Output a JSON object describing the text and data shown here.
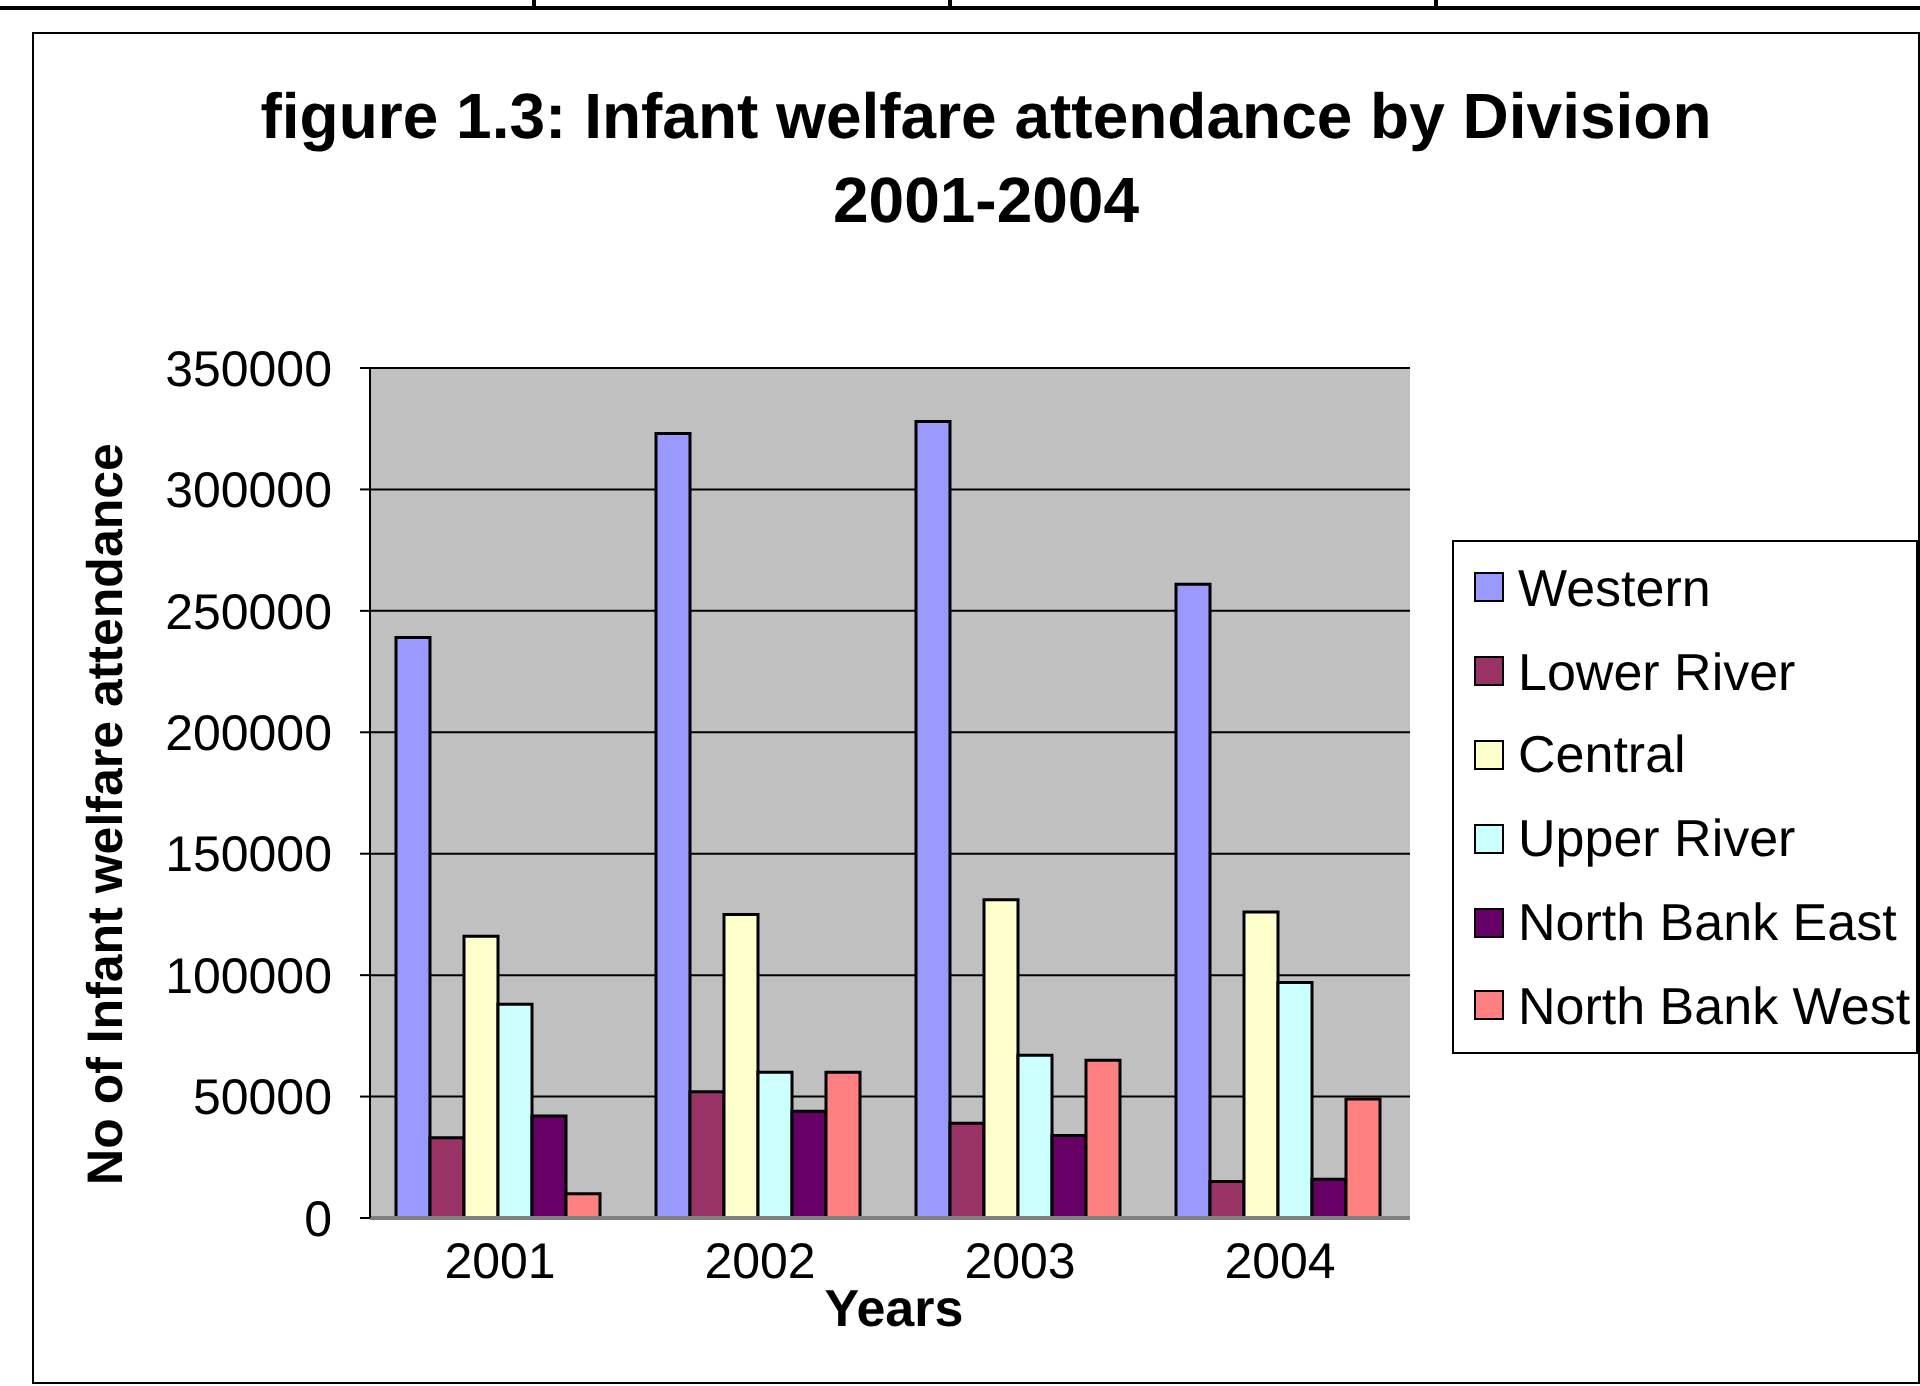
{
  "chart_data": {
    "type": "bar",
    "title": "figure 1.3: Infant welfare attendance by Division 2001-2004",
    "xlabel": "Years",
    "ylabel": "No of Infant welfare attendance",
    "categories": [
      "2001",
      "2002",
      "2003",
      "2004"
    ],
    "series": [
      {
        "name": "Western",
        "color": "#9999ff",
        "values": [
          239000,
          323000,
          328000,
          261000
        ]
      },
      {
        "name": "Lower River",
        "color": "#993366",
        "values": [
          33000,
          52000,
          39000,
          15000
        ]
      },
      {
        "name": "Central",
        "color": "#ffffcc",
        "values": [
          116000,
          125000,
          131000,
          126000
        ]
      },
      {
        "name": "Upper River",
        "color": "#ccffff",
        "values": [
          88000,
          60000,
          67000,
          97000
        ]
      },
      {
        "name": "North Bank East",
        "color": "#660066",
        "values": [
          42000,
          44000,
          34000,
          16000
        ]
      },
      {
        "name": "North Bank West",
        "color": "#ff8080",
        "values": [
          10000,
          60000,
          65000,
          49000
        ]
      }
    ],
    "ylim": [
      0,
      350000
    ],
    "yticks": [
      0,
      50000,
      100000,
      150000,
      200000,
      250000,
      300000,
      350000
    ],
    "grid": "y",
    "legend": "right"
  }
}
